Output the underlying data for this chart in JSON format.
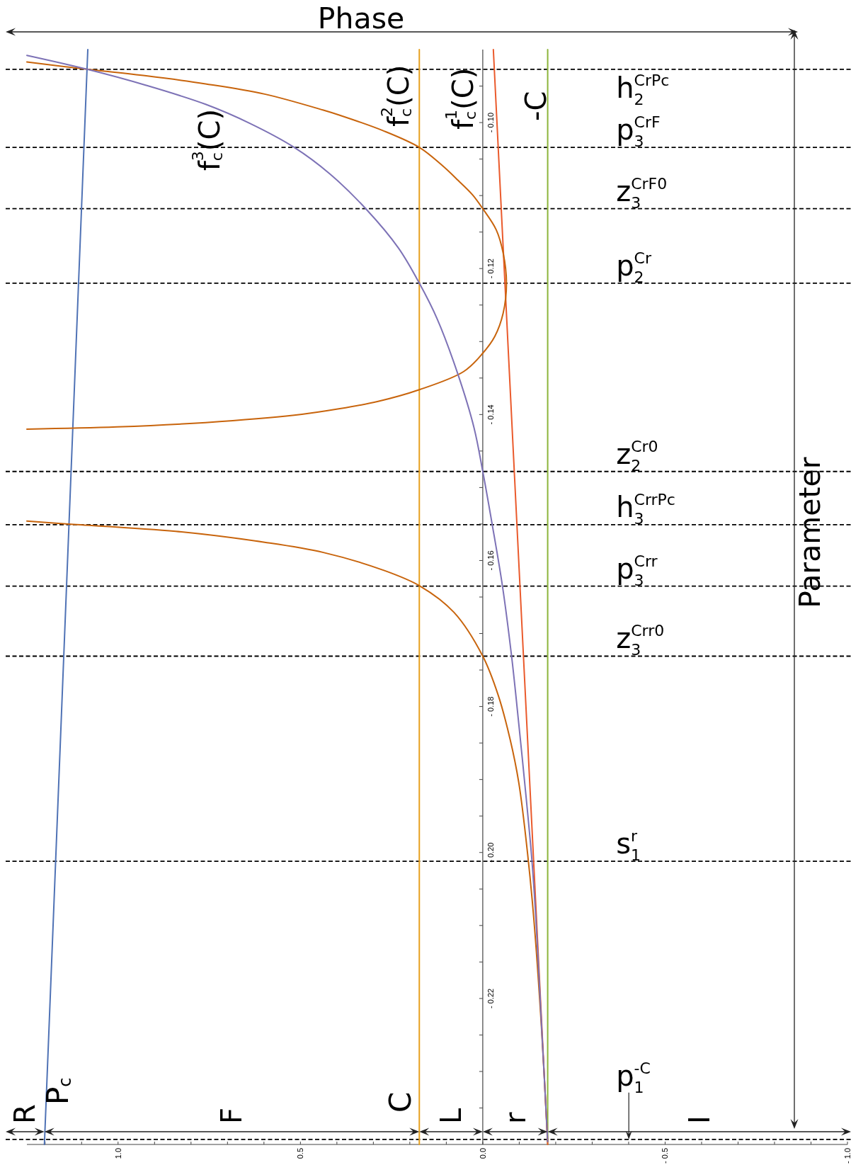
{
  "chart_data": {
    "type": "line",
    "xlabel": "Phase",
    "ylabel": "Parameter",
    "xlim": [
      1.25,
      -1.0
    ],
    "ylim": [
      -0.24,
      -0.09
    ],
    "xticks": [
      {
        "value": 1.2,
        "label": null
      },
      {
        "value": 1.1,
        "label": null
      },
      {
        "value": 1.0,
        "label": "1.0"
      },
      {
        "value": 0.9,
        "label": null
      },
      {
        "value": 0.8,
        "label": null
      },
      {
        "value": 0.7,
        "label": null
      },
      {
        "value": 0.6,
        "label": null
      },
      {
        "value": 0.5,
        "label": "0.5"
      },
      {
        "value": 0.4,
        "label": null
      },
      {
        "value": 0.3,
        "label": null
      },
      {
        "value": 0.2,
        "label": null
      },
      {
        "value": 0.1,
        "label": null
      },
      {
        "value": 0.0,
        "label": "0.0"
      },
      {
        "value": -0.1,
        "label": null
      },
      {
        "value": -0.2,
        "label": null
      },
      {
        "value": -0.3,
        "label": null
      },
      {
        "value": -0.4,
        "label": null
      },
      {
        "value": -0.5,
        "label": "- 0.5"
      },
      {
        "value": -0.6,
        "label": null
      },
      {
        "value": -0.7,
        "label": null
      },
      {
        "value": -0.8,
        "label": null
      },
      {
        "value": -0.9,
        "label": null
      },
      {
        "value": -1.0,
        "label": "- 1.0"
      }
    ],
    "yticks": [
      {
        "value": -0.095,
        "label": null
      },
      {
        "value": -0.1,
        "label": "- 0.10"
      },
      {
        "value": -0.105,
        "label": null
      },
      {
        "value": -0.11,
        "label": null
      },
      {
        "value": -0.115,
        "label": null
      },
      {
        "value": -0.12,
        "label": "- 0.12"
      },
      {
        "value": -0.125,
        "label": null
      },
      {
        "value": -0.13,
        "label": null
      },
      {
        "value": -0.135,
        "label": null
      },
      {
        "value": -0.14,
        "label": "- 0.14"
      },
      {
        "value": -0.145,
        "label": null
      },
      {
        "value": -0.15,
        "label": null
      },
      {
        "value": -0.155,
        "label": null
      },
      {
        "value": -0.16,
        "label": "- 0.16"
      },
      {
        "value": -0.165,
        "label": null
      },
      {
        "value": -0.17,
        "label": null
      },
      {
        "value": -0.175,
        "label": null
      },
      {
        "value": -0.18,
        "label": "- 0.18"
      },
      {
        "value": -0.185,
        "label": null
      },
      {
        "value": -0.19,
        "label": null
      },
      {
        "value": -0.195,
        "label": null
      },
      {
        "value": -0.2,
        "label": "- 0.20"
      },
      {
        "value": -0.205,
        "label": null
      },
      {
        "value": -0.21,
        "label": null
      },
      {
        "value": -0.215,
        "label": null
      },
      {
        "value": -0.22,
        "label": "- 0.22"
      },
      {
        "value": -0.225,
        "label": null
      },
      {
        "value": -0.23,
        "label": null
      },
      {
        "value": -0.235,
        "label": null
      }
    ],
    "series": [
      {
        "name": "P$_{c}$",
        "color": "#4f72b5",
        "x": [
          1.083,
          1.202
        ],
        "values": [
          -0.09,
          -0.24
        ]
      },
      {
        "name": "C",
        "color": "#e6a01e",
        "x": [
          0.174,
          0.174
        ],
        "values": [
          -0.09,
          -0.24
        ]
      },
      {
        "name": "-C",
        "color": "#8cb43a",
        "x": [
          -0.178,
          -0.178
        ],
        "values": [
          -0.09,
          -0.24
        ]
      },
      {
        "name": "f$_{c}$$^{1}$(C)",
        "color": "#ea5a2c",
        "x": [
          -0.029,
          -0.178
        ],
        "values": [
          -0.09,
          -0.24
        ]
      },
      {
        "name": "f$_{c}$$^{2}$(C)",
        "color": "#c8640c",
        "x": [
          1.25,
          1.085,
          0.923,
          0.76,
          0.598,
          0.437,
          0.392,
          0.274,
          0.174,
          0.113,
          0.068,
          0.028,
          0.0,
          -0.037,
          -0.056,
          -0.065,
          -0.056,
          -0.033,
          0.0,
          0.052,
          0.174,
          0.287,
          0.392,
          0.517,
          0.76,
          1.003,
          1.25,
          null,
          1.25,
          1.136,
          0.842,
          0.598,
          0.437,
          0.274,
          0.172,
          0.079,
          0.0,
          -0.042,
          -0.075,
          -0.099,
          -0.123,
          -0.14,
          -0.161,
          -0.178
        ],
        "values": [
          -0.0917,
          -0.0927,
          -0.0936,
          -0.0947,
          -0.0961,
          -0.0983,
          -0.099,
          -0.1011,
          -0.1034,
          -0.1058,
          -0.1079,
          -0.1099,
          -0.1118,
          -0.1147,
          -0.1179,
          -0.122,
          -0.1261,
          -0.1293,
          -0.1316,
          -0.1341,
          -0.1366,
          -0.1382,
          -0.1392,
          -0.1401,
          -0.1411,
          -0.1417,
          -0.142,
          null,
          -0.1546,
          -0.155,
          -0.156,
          -0.1575,
          -0.1589,
          -0.1613,
          -0.1635,
          -0.1671,
          -0.1731,
          -0.1784,
          -0.1845,
          -0.1905,
          -0.2002,
          -0.2091,
          -0.224,
          -0.2396
        ]
      },
      {
        "name": "f$_{c}$$^{3}$(C)",
        "color": "#7d72b6",
        "x": [
          1.25,
          1.085,
          0.923,
          0.76,
          0.639,
          0.517,
          0.42,
          0.319,
          0.231,
          0.174,
          0.125,
          0.068,
          0.024,
          0.0,
          -0.026,
          -0.054,
          -0.079,
          -0.099,
          -0.119,
          -0.135,
          -0.146,
          -0.162,
          -0.178
        ],
        "values": [
          -0.0908,
          -0.0927,
          -0.0949,
          -0.0975,
          -0.1001,
          -0.1034,
          -0.107,
          -0.1119,
          -0.1172,
          -0.122,
          -0.1269,
          -0.1345,
          -0.1418,
          -0.1478,
          -0.1551,
          -0.1635,
          -0.1731,
          -0.1825,
          -0.1925,
          -0.2012,
          -0.2094,
          -0.2245,
          -0.2396
        ]
      }
    ],
    "ref_lines": [
      {
        "axis": "y",
        "value": -0.0927,
        "label": "h$_{2}$$^{CrPc}$",
        "color": "#000000",
        "line_style": "dashed"
      },
      {
        "axis": "y",
        "value": -0.1034,
        "label": "p$_{3}$$^{CrF}$",
        "color": "#000000",
        "line_style": "dashed"
      },
      {
        "axis": "y",
        "value": -0.1118,
        "label": "z$_{3}$$^{CrF0}$",
        "color": "#000000",
        "line_style": "dashed"
      },
      {
        "axis": "y",
        "value": -0.122,
        "label": "p$_{2}$$^{Cr}$",
        "color": "#000000",
        "line_style": "dashed"
      },
      {
        "axis": "y",
        "value": -0.1478,
        "label": "z$_{2}$$^{Cr0}$",
        "color": "#000000",
        "line_style": "dashed"
      },
      {
        "axis": "y",
        "value": -0.1551,
        "label": "h$_{3}$$^{CrrPc}$",
        "color": "#000000",
        "line_style": "dashed"
      },
      {
        "axis": "y",
        "value": -0.1635,
        "label": "p$_{3}$$^{Crr}$",
        "color": "#000000",
        "line_style": "dashed"
      },
      {
        "axis": "y",
        "value": -0.1731,
        "label": "z$_{3}$$^{Crr0}$",
        "color": "#000000",
        "line_style": "dashed"
      },
      {
        "axis": "y",
        "value": -0.2012,
        "label": "s$_{1}$$^{r}$",
        "color": "#000000",
        "line_style": "dashed"
      },
      {
        "axis": "y",
        "value": -0.2393,
        "label": "p$_{1}$$^{-C}$",
        "color": "#000000",
        "line_style": "dashed"
      }
    ],
    "annotations": [
      "R",
      "F",
      "L",
      "r",
      "I"
    ]
  }
}
